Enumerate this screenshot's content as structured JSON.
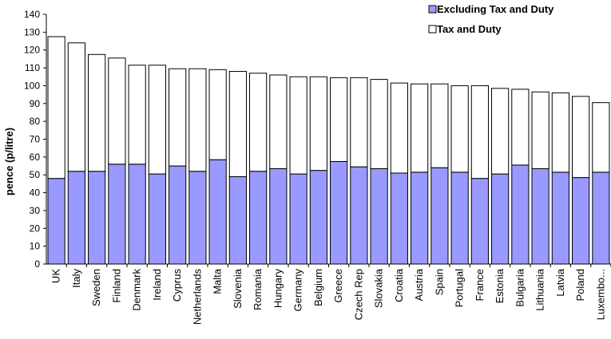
{
  "chart_data": {
    "type": "bar",
    "stacked": true,
    "categories": [
      "UK",
      "Italy",
      "Sweden",
      "Finland",
      "Denmark",
      "Ireland",
      "Cyprus",
      "Netherlands",
      "Malta",
      "Slovenia",
      "Romania",
      "Hungary",
      "Germany",
      "Belgium",
      "Greece",
      "Czech Rep",
      "Slovakia",
      "Croatia",
      "Austria",
      "Spain",
      "Portugal",
      "France",
      "Estonia",
      "Bulgaria",
      "Lithuania",
      "Latvia",
      "Poland",
      "Luxembo..."
    ],
    "series": [
      {
        "name": "Excluding Tax and Duty",
        "color": "#9999ff",
        "values": [
          48,
          52,
          52,
          56,
          56,
          50.5,
          55,
          52,
          58.5,
          49,
          52,
          53.5,
          50.5,
          52.5,
          57.5,
          54.5,
          53.5,
          51,
          51.5,
          54,
          51.5,
          48,
          50.5,
          55.5,
          53.5,
          51.5,
          48.5,
          51.5
        ]
      },
      {
        "name": "Tax and Duty",
        "color": "#ffffff",
        "values": [
          79.5,
          72,
          65.5,
          59.5,
          55.5,
          61,
          54.5,
          57.5,
          50.5,
          59,
          55,
          52.5,
          54.5,
          52.5,
          47,
          50,
          50,
          50.5,
          49.5,
          47,
          48.5,
          52,
          48,
          42.5,
          43,
          44.5,
          45.5,
          39
        ]
      }
    ],
    "totals": [
      127.5,
      124,
      117.5,
      115.5,
      111.5,
      111.5,
      109.5,
      109.5,
      109,
      108,
      107,
      106,
      105,
      105,
      104.5,
      104.5,
      103.5,
      101.5,
      101,
      101,
      100,
      100,
      98.5,
      98,
      96.5,
      96,
      94,
      90.5
    ],
    "ylabel": "pence (p/litre)",
    "ylim": [
      0,
      140
    ],
    "yticks": [
      0,
      10,
      20,
      30,
      40,
      50,
      60,
      70,
      80,
      90,
      100,
      110,
      120,
      130,
      140
    ],
    "grid": false,
    "legend_position": "top-right"
  }
}
